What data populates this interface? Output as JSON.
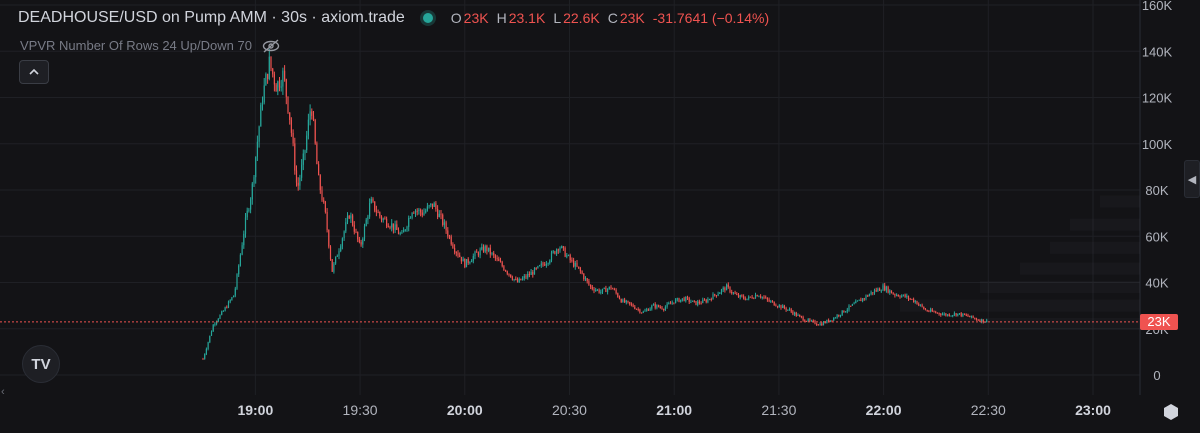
{
  "legend": {
    "symbol": "DEADHOUSE/USD on Pump AMM · 30s · axiom.trade",
    "open_label": "O",
    "open": "23K",
    "high_label": "H",
    "high": "23.1K",
    "low_label": "L",
    "low": "22.6K",
    "close_label": "C",
    "close": "23K",
    "change": "-31.7641 (−0.14%)"
  },
  "indicator": {
    "label": "VPVR Number Of Rows 24 Up/Down 70",
    "icon": "eye-off-icon"
  },
  "collapse_icon": "chevron-up-icon",
  "logo_text": "TV",
  "price_tag": "23K",
  "colors": {
    "up": "#26a69a",
    "down": "#ef5350",
    "background": "#131316",
    "grid": "#1f2025",
    "axis_text": "#b2b5be"
  },
  "chart_data": {
    "type": "candlestick",
    "y_ticks": [
      "0",
      "20K",
      "40K",
      "60K",
      "80K",
      "100K",
      "120K",
      "140K",
      "160K"
    ],
    "y_tick_values": [
      0,
      20000,
      40000,
      60000,
      80000,
      100000,
      120000,
      140000,
      160000
    ],
    "ylim": [
      0,
      160000
    ],
    "x_ticks": [
      "19:00",
      "19:30",
      "20:00",
      "20:30",
      "21:00",
      "21:30",
      "22:00",
      "22:30",
      "23:00"
    ],
    "bold_x_ticks": [
      "19:00",
      "20:00",
      "21:00",
      "22:00",
      "23:00"
    ],
    "current_price": 23000,
    "close_path": [
      [
        "18:45",
        7000
      ],
      [
        "18:48",
        22000
      ],
      [
        "18:51",
        28000
      ],
      [
        "18:54",
        35000
      ],
      [
        "18:57",
        65000
      ],
      [
        "18:59",
        80000
      ],
      [
        "19:02",
        120000
      ],
      [
        "19:04",
        135000
      ],
      [
        "19:06",
        125000
      ],
      [
        "19:08",
        130000
      ],
      [
        "19:10",
        110000
      ],
      [
        "19:12",
        80000
      ],
      [
        "19:14",
        95000
      ],
      [
        "19:16",
        118000
      ],
      [
        "19:18",
        85000
      ],
      [
        "19:20",
        70000
      ],
      [
        "19:22",
        45000
      ],
      [
        "19:24",
        55000
      ],
      [
        "19:27",
        70000
      ],
      [
        "19:30",
        55000
      ],
      [
        "19:33",
        75000
      ],
      [
        "19:36",
        68000
      ],
      [
        "19:39",
        65000
      ],
      [
        "19:42",
        60000
      ],
      [
        "19:45",
        72000
      ],
      [
        "19:48",
        70000
      ],
      [
        "19:51",
        74000
      ],
      [
        "19:54",
        65000
      ],
      [
        "19:57",
        55000
      ],
      [
        "20:00",
        48000
      ],
      [
        "20:03",
        52000
      ],
      [
        "20:06",
        55000
      ],
      [
        "20:09",
        50000
      ],
      [
        "20:12",
        45000
      ],
      [
        "20:15",
        40000
      ],
      [
        "20:18",
        43000
      ],
      [
        "20:21",
        46000
      ],
      [
        "20:24",
        50000
      ],
      [
        "20:27",
        56000
      ],
      [
        "20:30",
        50000
      ],
      [
        "20:33",
        45000
      ],
      [
        "20:36",
        38000
      ],
      [
        "20:39",
        36000
      ],
      [
        "20:42",
        38000
      ],
      [
        "20:45",
        32000
      ],
      [
        "20:48",
        30000
      ],
      [
        "20:51",
        27000
      ],
      [
        "20:54",
        30000
      ],
      [
        "20:57",
        29000
      ],
      [
        "21:00",
        32000
      ],
      [
        "21:03",
        33000
      ],
      [
        "21:06",
        31000
      ],
      [
        "21:09",
        32000
      ],
      [
        "21:12",
        35000
      ],
      [
        "21:15",
        38000
      ],
      [
        "21:18",
        34000
      ],
      [
        "21:21",
        33000
      ],
      [
        "21:24",
        35000
      ],
      [
        "21:27",
        32000
      ],
      [
        "21:30",
        30000
      ],
      [
        "21:33",
        28000
      ],
      [
        "21:36",
        25000
      ],
      [
        "21:39",
        23000
      ],
      [
        "21:42",
        22000
      ],
      [
        "21:45",
        24000
      ],
      [
        "21:48",
        27000
      ],
      [
        "21:51",
        30000
      ],
      [
        "21:54",
        33000
      ],
      [
        "21:57",
        36000
      ],
      [
        "22:00",
        38000
      ],
      [
        "22:03",
        35000
      ],
      [
        "22:06",
        34000
      ],
      [
        "22:09",
        32000
      ],
      [
        "22:12",
        28000
      ],
      [
        "22:15",
        27000
      ],
      [
        "22:18",
        26000
      ],
      [
        "22:21",
        26500
      ],
      [
        "22:24",
        25500
      ],
      [
        "22:27",
        24000
      ],
      [
        "22:30",
        23000
      ]
    ]
  }
}
